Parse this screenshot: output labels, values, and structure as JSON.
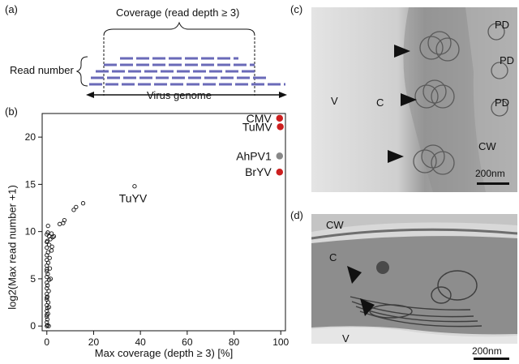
{
  "panels": {
    "a": {
      "label": "(a)",
      "coverage_label": "Coverage (read depth ≥ 3)",
      "read_number_label": "Read number",
      "genome_label": "Virus genome",
      "read_color": "#6a6ab8"
    },
    "b": {
      "label": "(b)"
    },
    "c": {
      "label": "(c)",
      "marks": {
        "v": "V",
        "c": "C",
        "pd1": "PD",
        "pd2": "PD",
        "pd3": "PD",
        "cw": "CW"
      },
      "scale_bar": "200nm"
    },
    "d": {
      "label": "(d)",
      "marks": {
        "cw": "CW",
        "c": "C",
        "v": "V"
      },
      "scale_bar": "200nm"
    }
  },
  "chart_data": {
    "type": "scatter",
    "xlabel": "Max coverage (depth ≥ 3) [%]",
    "ylabel": "log2(Max read number +1)",
    "xlim": [
      -2,
      102
    ],
    "ylim": [
      -0.5,
      22.5
    ],
    "xticks": [
      0,
      20,
      40,
      60,
      80,
      100
    ],
    "yticks": [
      0,
      5,
      10,
      15,
      20
    ],
    "highlighted": [
      {
        "name": "CMV",
        "x": 99.5,
        "y": 22.0,
        "color": "#cc1f1f"
      },
      {
        "name": "TuMV",
        "x": 99.8,
        "y": 21.1,
        "color": "#cc1f1f"
      },
      {
        "name": "AhPV1",
        "x": 99.5,
        "y": 18.0,
        "color": "#888888"
      },
      {
        "name": "BrYV",
        "x": 99.5,
        "y": 16.3,
        "color": "#cc1f1f"
      },
      {
        "name": "TuYV",
        "x": 37.5,
        "y": 14.8,
        "color": "#ffffff"
      }
    ],
    "points": [
      [
        11.5,
        12.3
      ],
      [
        12.5,
        12.6
      ],
      [
        15.5,
        13.0
      ],
      [
        7.5,
        11.2
      ],
      [
        5.5,
        10.8
      ],
      [
        7.0,
        10.9
      ],
      [
        0.5,
        10.6
      ],
      [
        2.0,
        9.8
      ],
      [
        2.5,
        9.4
      ],
      [
        1.0,
        9.5
      ],
      [
        0.0,
        9.7
      ],
      [
        3.0,
        9.5
      ],
      [
        1.5,
        9.2
      ],
      [
        0.2,
        9.0
      ],
      [
        1.0,
        8.6
      ],
      [
        0.0,
        8.3
      ],
      [
        2.0,
        8.0
      ],
      [
        0.5,
        7.8
      ],
      [
        0.0,
        7.5
      ],
      [
        1.2,
        7.2
      ],
      [
        0.0,
        7.0
      ],
      [
        0.6,
        6.7
      ],
      [
        0.0,
        6.4
      ],
      [
        1.3,
        6.1
      ],
      [
        0.0,
        5.8
      ],
      [
        0.4,
        5.5
      ],
      [
        0.0,
        5.2
      ],
      [
        1.0,
        4.9
      ],
      [
        0.0,
        4.6
      ],
      [
        0.3,
        4.3
      ],
      [
        0.0,
        4.0
      ],
      [
        0.8,
        3.7
      ],
      [
        0.0,
        3.4
      ],
      [
        0.2,
        3.1
      ],
      [
        0.0,
        2.8
      ],
      [
        0.6,
        2.5
      ],
      [
        0.0,
        2.2
      ],
      [
        0.2,
        1.9
      ],
      [
        0.0,
        1.6
      ],
      [
        0.5,
        1.3
      ],
      [
        0.0,
        1.0
      ],
      [
        0.2,
        0.7
      ],
      [
        0.0,
        0.4
      ],
      [
        0.3,
        0.1
      ],
      [
        0.0,
        0.0
      ],
      [
        0.8,
        0.0
      ],
      [
        0.0,
        8.9
      ],
      [
        0.0,
        6.0
      ],
      [
        0.0,
        3.0
      ],
      [
        0.0,
        1.2
      ],
      [
        0.4,
        9.9
      ],
      [
        2.2,
        8.4
      ],
      [
        1.6,
        5.0
      ],
      [
        0.9,
        2.0
      ]
    ]
  }
}
